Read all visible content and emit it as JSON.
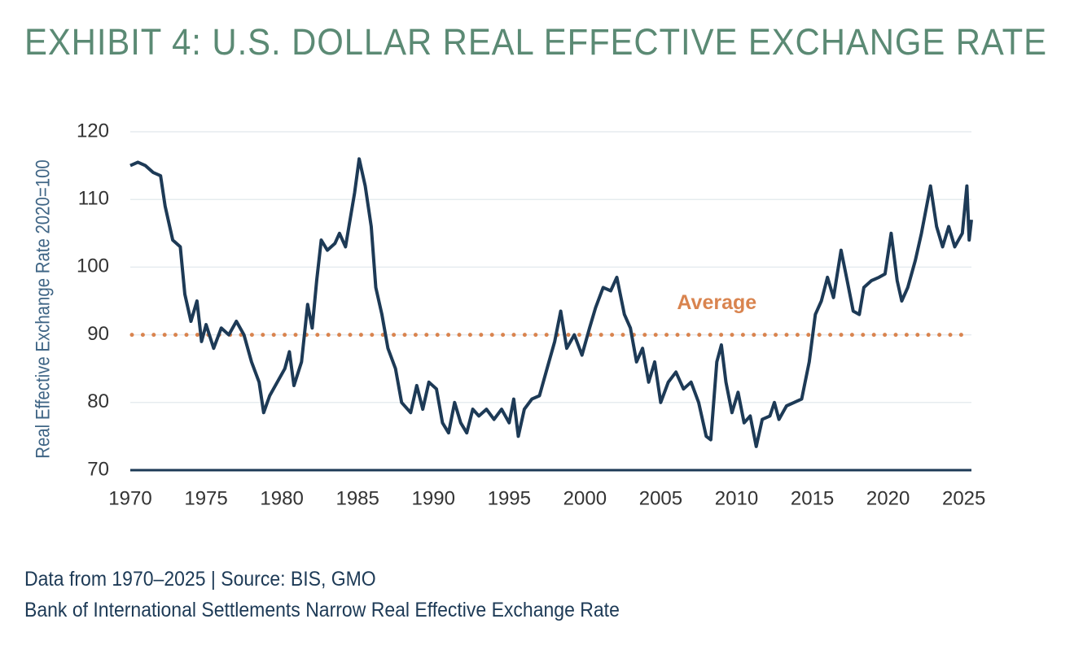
{
  "chart_data": {
    "type": "line",
    "title": "EXHIBIT 4: U.S. DOLLAR REAL EFFECTIVE EXCHANGE RATE",
    "y_label": "Real Effective Exchange Rate 2020=100",
    "footnotes": [
      "Data from 1970–2025 | Source: BIS, GMO",
      "Bank of International Settlements Narrow Real Effective Exchange Rate"
    ],
    "xlim": [
      1970,
      2025.5
    ],
    "xticks": [
      1970,
      1975,
      1980,
      1985,
      1990,
      1995,
      2000,
      2005,
      2010,
      2015,
      2020,
      2025
    ],
    "ylim": [
      70,
      120
    ],
    "yticks": [
      70,
      80,
      90,
      100,
      110,
      120
    ],
    "grid": true,
    "average": {
      "value": 90,
      "label": "Average",
      "color": "#d9844f"
    },
    "series": [
      {
        "color": "#1d3a56",
        "x": [
          1970,
          1970.5,
          1971,
          1971.5,
          1972,
          1972.3,
          1972.8,
          1973.3,
          1973.6,
          1974,
          1974.4,
          1974.7,
          1975,
          1975.5,
          1976,
          1976.5,
          1977,
          1977.5,
          1978,
          1978.5,
          1978.8,
          1979.2,
          1979.7,
          1980.2,
          1980.5,
          1980.8,
          1981.3,
          1981.7,
          1982,
          1982.3,
          1982.6,
          1983,
          1983.5,
          1983.8,
          1984.2,
          1984.5,
          1984.8,
          1985.1,
          1985.5,
          1985.9,
          1986.2,
          1986.6,
          1987,
          1987.5,
          1987.9,
          1988.5,
          1988.9,
          1989.3,
          1989.7,
          1990.2,
          1990.6,
          1991,
          1991.4,
          1991.8,
          1992.2,
          1992.6,
          1993,
          1993.5,
          1994,
          1994.5,
          1995,
          1995.3,
          1995.6,
          1996,
          1996.5,
          1997,
          1997.5,
          1998,
          1998.4,
          1998.8,
          1999.3,
          1999.8,
          2000.3,
          2000.7,
          2001.2,
          2001.7,
          2002.1,
          2002.6,
          2003,
          2003.4,
          2003.8,
          2004.2,
          2004.6,
          2005,
          2005.5,
          2006,
          2006.5,
          2007,
          2007.5,
          2008,
          2008.3,
          2008.7,
          2009,
          2009.3,
          2009.7,
          2010.1,
          2010.5,
          2010.9,
          2011.3,
          2011.7,
          2012.2,
          2012.5,
          2012.8,
          2013.3,
          2013.8,
          2014.3,
          2014.8,
          2015.2,
          2015.6,
          2016,
          2016.4,
          2016.9,
          2017.3,
          2017.7,
          2018.1,
          2018.4,
          2018.9,
          2019.4,
          2019.8,
          2020.2,
          2020.6,
          2020.9,
          2021.3,
          2021.8,
          2022.2,
          2022.8,
          2023.2,
          2023.6,
          2024,
          2024.4,
          2024.9,
          2025.2,
          2025.35,
          2025.5
        ],
        "values": [
          115,
          115.5,
          115,
          114,
          113.5,
          109,
          104,
          103,
          96,
          92,
          95,
          89,
          91.5,
          88,
          91,
          90,
          92,
          90,
          86,
          83,
          78.5,
          81,
          83,
          85,
          87.5,
          82.5,
          86,
          94.5,
          91,
          98,
          104,
          102.5,
          103.5,
          105,
          103,
          107,
          111,
          116,
          112,
          106,
          97,
          93,
          88,
          85,
          80,
          78.5,
          82.5,
          79,
          83,
          82,
          77,
          75.5,
          80,
          77,
          75.5,
          79,
          78,
          79,
          77.5,
          79,
          77,
          80.5,
          75,
          79,
          80.5,
          81,
          85,
          89,
          93.5,
          88,
          90,
          87,
          91,
          94,
          97,
          96.5,
          98.5,
          93,
          91,
          86,
          88,
          83,
          86,
          80,
          83,
          84.5,
          82,
          83,
          80,
          75,
          74.5,
          86,
          88.5,
          83,
          78.5,
          81.5,
          77,
          78,
          73.5,
          77.5,
          78,
          80,
          77.5,
          79.5,
          80,
          80.5,
          86,
          93,
          95,
          98.5,
          95.5,
          102.5,
          98,
          93.5,
          93,
          97,
          98,
          98.5,
          99,
          105,
          98,
          95,
          97,
          101,
          105,
          112,
          106,
          103,
          106,
          103,
          105,
          112,
          104,
          107
        ]
      }
    ]
  }
}
